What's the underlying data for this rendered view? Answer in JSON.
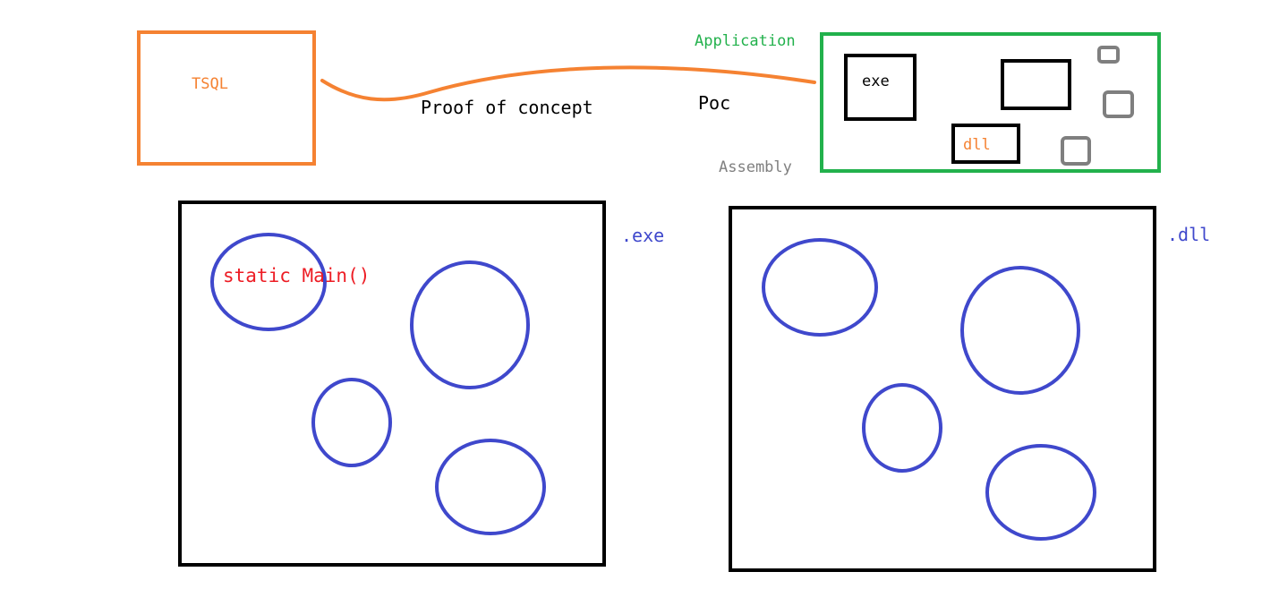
{
  "colors": {
    "orange": "#f58232",
    "green": "#22b14c",
    "black": "#000000",
    "gray": "#7f7f7f",
    "blue": "#3f48cc",
    "red": "#ed1c24"
  },
  "labels": {
    "tsql": "TSQL",
    "proof_of_concept": "Proof of concept",
    "poc": "Poc",
    "application": "Application",
    "assembly": "Assembly",
    "exe_small": "exe",
    "dll_small": "dll",
    "exe_ext": ".exe",
    "dll_ext": ".dll",
    "static_main": "static Main()"
  }
}
